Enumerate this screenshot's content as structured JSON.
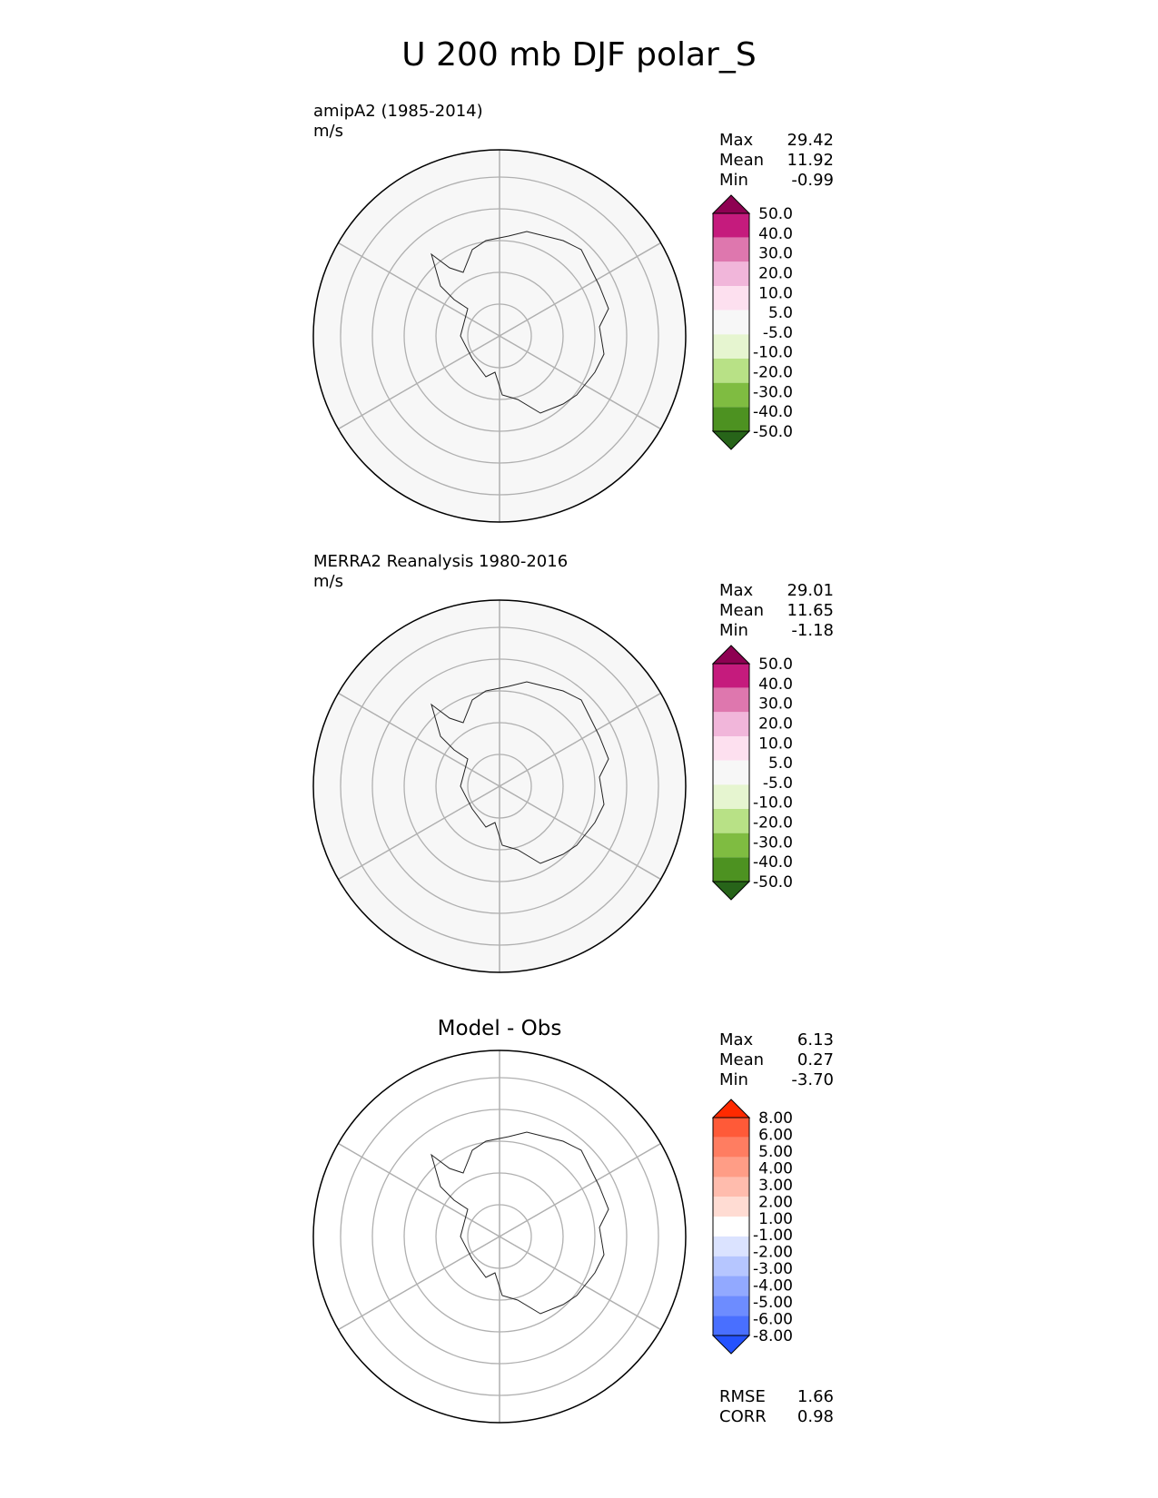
{
  "figure": {
    "title": "U 200 mb DJF polar_S"
  },
  "panels": [
    {
      "name": "amipA2 (1985-2014)",
      "units": "m/s",
      "stats": {
        "max_label": "Max",
        "max": "29.42",
        "mean_label": "Mean",
        "mean": "11.92",
        "min_label": "Min",
        "min": "-0.99"
      }
    },
    {
      "name": "MERRA2 Reanalysis 1980-2016",
      "units": "m/s",
      "stats": {
        "max_label": "Max",
        "max": "29.01",
        "mean_label": "Mean",
        "mean": "11.65",
        "min_label": "Min",
        "min": "-1.18"
      }
    },
    {
      "name": "Model - Obs",
      "stats": {
        "max_label": "Max",
        "max": "6.13",
        "mean_label": "Mean",
        "mean": "0.27",
        "min_label": "Min",
        "min": "-3.70"
      },
      "metrics": {
        "rmse_label": "RMSE",
        "rmse": "1.66",
        "corr_label": "CORR",
        "corr": "0.98"
      }
    }
  ],
  "chart_data": [
    {
      "type": "heatmap",
      "projection": "south polar stereographic",
      "colorbar": {
        "ticks": [
          "50.0",
          "40.0",
          "30.0",
          "20.0",
          "10.0",
          "5.0",
          "-5.0",
          "-10.0",
          "-20.0",
          "-30.0",
          "-40.0",
          "-50.0"
        ],
        "colors": [
          "#8e0152",
          "#c51b7d",
          "#de77ae",
          "#f1b6da",
          "#fde0ef",
          "#f7f7f7",
          "#e6f5d0",
          "#b8e186",
          "#7fbc41",
          "#4d9221",
          "#276419"
        ],
        "extend": "both"
      },
      "bands": [
        {
          "r": 0.0,
          "color": "#f7f7f7"
        },
        {
          "r": 0.55,
          "color": "#fde0ef"
        },
        {
          "r": 0.69,
          "color": "#f1b6da"
        },
        {
          "r": 0.88,
          "color": "#e699c6"
        }
      ]
    },
    {
      "type": "heatmap",
      "projection": "south polar stereographic",
      "colorbar": {
        "ticks": [
          "50.0",
          "40.0",
          "30.0",
          "20.0",
          "10.0",
          "5.0",
          "-5.0",
          "-10.0",
          "-20.0",
          "-30.0",
          "-40.0",
          "-50.0"
        ],
        "colors": [
          "#8e0152",
          "#c51b7d",
          "#de77ae",
          "#f1b6da",
          "#fde0ef",
          "#f7f7f7",
          "#e6f5d0",
          "#b8e186",
          "#7fbc41",
          "#4d9221",
          "#276419"
        ],
        "extend": "both"
      },
      "bands": [
        {
          "r": 0.0,
          "color": "#f7f7f7"
        },
        {
          "r": 0.62,
          "color": "#fde0ef"
        },
        {
          "r": 0.74,
          "color": "#f1b6da"
        },
        {
          "r": 0.9,
          "color": "#e699c6"
        }
      ]
    },
    {
      "type": "heatmap",
      "projection": "south polar stereographic",
      "colorbar": {
        "ticks": [
          "8.00",
          "6.00",
          "5.00",
          "4.00",
          "3.00",
          "2.00",
          "1.00",
          "-1.00",
          "-2.00",
          "-3.00",
          "-4.00",
          "-5.00",
          "-6.00",
          "-8.00"
        ],
        "colors": [
          "#ff2a00",
          "#ff5a38",
          "#ff7d61",
          "#ff9d86",
          "#ffbcad",
          "#ffdcd3",
          "#ffffff",
          "#dbe3ff",
          "#b6c6ff",
          "#92a9ff",
          "#6d8cff",
          "#496fff",
          "#2452ff"
        ],
        "extend": "both"
      },
      "bands": [
        {
          "r": 0.0,
          "color": "#ffffff"
        }
      ]
    }
  ]
}
